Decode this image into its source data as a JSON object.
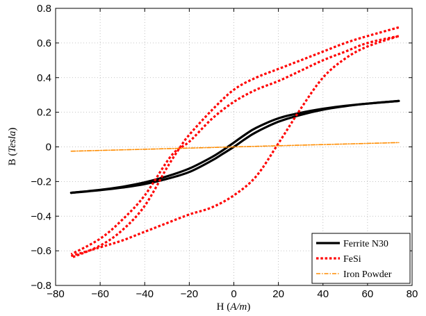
{
  "chart_data": {
    "type": "line",
    "title": "",
    "xlabel": {
      "prefix": "H (",
      "unit": "A/m",
      "suffix": ")"
    },
    "ylabel": {
      "prefix": "B (",
      "unit": "Tesla",
      "suffix": ")"
    },
    "xlim": [
      -80,
      80
    ],
    "ylim": [
      -0.8,
      0.8
    ],
    "xticks": [
      -80,
      -60,
      -40,
      -20,
      0,
      20,
      40,
      60,
      80
    ],
    "yticks": [
      -0.8,
      -0.6,
      -0.4,
      -0.2,
      0,
      0.2,
      0.4,
      0.6,
      0.8
    ],
    "xtick_labels": [
      "−80",
      "−60",
      "−40",
      "−20",
      "0",
      "20",
      "40",
      "60",
      "80"
    ],
    "ytick_labels": [
      "−0.8",
      "−0.6",
      "−0.4",
      "−0.2",
      "0",
      "0.2",
      "0.4",
      "0.6",
      "0.8"
    ],
    "grid": true,
    "legend_position": "bottom-right",
    "series": [
      {
        "name": "Ferrite N30",
        "color": "#000000",
        "style": "solid",
        "branches": [
          {
            "x": [
              -73,
              -60,
              -50,
              -40,
              -30,
              -20,
              -10,
              -5,
              0,
              5,
              10,
              20,
              30,
              40,
              50,
              60,
              74
            ],
            "y": [
              -0.265,
              -0.25,
              -0.235,
              -0.215,
              -0.185,
              -0.145,
              -0.08,
              -0.04,
              0.0,
              0.045,
              0.085,
              0.145,
              0.185,
              0.215,
              0.235,
              0.25,
              0.265
            ]
          },
          {
            "x": [
              74,
              60,
              50,
              40,
              30,
              20,
              10,
              5,
              0,
              -5,
              -10,
              -20,
              -30,
              -40,
              -50,
              -60,
              -73
            ],
            "y": [
              0.265,
              0.25,
              0.237,
              0.22,
              0.197,
              0.165,
              0.11,
              0.07,
              0.025,
              -0.02,
              -0.06,
              -0.125,
              -0.17,
              -0.205,
              -0.23,
              -0.248,
              -0.265
            ]
          }
        ]
      },
      {
        "name": "FeSi",
        "color": "#ff0000",
        "style": "dotted",
        "branches": [
          {
            "x": [
              -73,
              -60,
              -50,
              -40,
              -30,
              -20,
              -10,
              0,
              10,
              20,
              30,
              40,
              50,
              60,
              74
            ],
            "y": [
              -0.63,
              -0.58,
              -0.54,
              -0.49,
              -0.44,
              -0.39,
              -0.35,
              -0.28,
              -0.17,
              0.02,
              0.22,
              0.4,
              0.51,
              0.58,
              0.64
            ]
          },
          {
            "x": [
              74,
              60,
              50,
              40,
              30,
              20,
              10,
              0,
              -10,
              -20,
              -24,
              -30,
              -40,
              -50,
              -60,
              -73
            ],
            "y": [
              0.69,
              0.64,
              0.6,
              0.55,
              0.5,
              0.45,
              0.4,
              0.33,
              0.21,
              0.07,
              0.0,
              -0.12,
              -0.34,
              -0.48,
              -0.57,
              -0.64
            ]
          },
          {
            "x": [
              74,
              60,
              50,
              40,
              30,
              20,
              10,
              0,
              -10,
              -20,
              -28,
              -40,
              -50,
              -60,
              -73
            ],
            "y": [
              0.64,
              0.6,
              0.55,
              0.5,
              0.44,
              0.38,
              0.33,
              0.26,
              0.16,
              0.03,
              -0.05,
              -0.28,
              -0.42,
              -0.53,
              -0.62
            ]
          }
        ]
      },
      {
        "name": "Iron Powder",
        "color": "#ff8c00",
        "style": "dashdot",
        "branches": [
          {
            "x": [
              -73,
              74
            ],
            "y": [
              -0.025,
              0.025
            ]
          }
        ]
      }
    ]
  }
}
